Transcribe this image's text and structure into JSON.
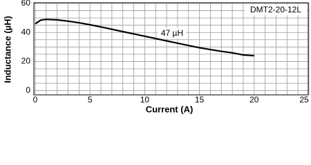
{
  "chart_data": {
    "type": "line",
    "x_label": "Current (A)",
    "y_label": "Inductance (µH)",
    "series_label": "DMT2-20-12L",
    "annotation": "47 µH",
    "xlim": [
      0,
      25
    ],
    "ylim": [
      -3,
      60
    ],
    "xticks": [
      0,
      5,
      10,
      15,
      20,
      25
    ],
    "yticks": [
      0,
      20,
      40,
      60
    ],
    "x_minor_ticks": [
      1,
      2,
      3,
      4,
      6,
      7,
      8,
      9,
      11,
      12,
      13,
      14,
      16,
      17,
      18,
      19,
      21,
      22,
      23,
      24
    ],
    "y_minor_ticks": [
      5,
      10,
      15,
      25,
      30,
      35,
      45,
      50,
      55
    ],
    "grid": true,
    "grid_color": "#9a9a9a",
    "series": [
      {
        "color": "#000000",
        "x": [
          0,
          0.5,
          1,
          2,
          3,
          4,
          5,
          6,
          7,
          8,
          9,
          10,
          11,
          12,
          13,
          14,
          15,
          16,
          17,
          18,
          19,
          20
        ],
        "values": [
          46,
          48.5,
          49,
          48.7,
          47.8,
          46.7,
          45.3,
          43.8,
          42.2,
          40.6,
          39,
          37.4,
          35.8,
          34.2,
          32.6,
          31,
          29.5,
          28.2,
          27,
          26,
          24.5,
          24
        ]
      }
    ]
  }
}
